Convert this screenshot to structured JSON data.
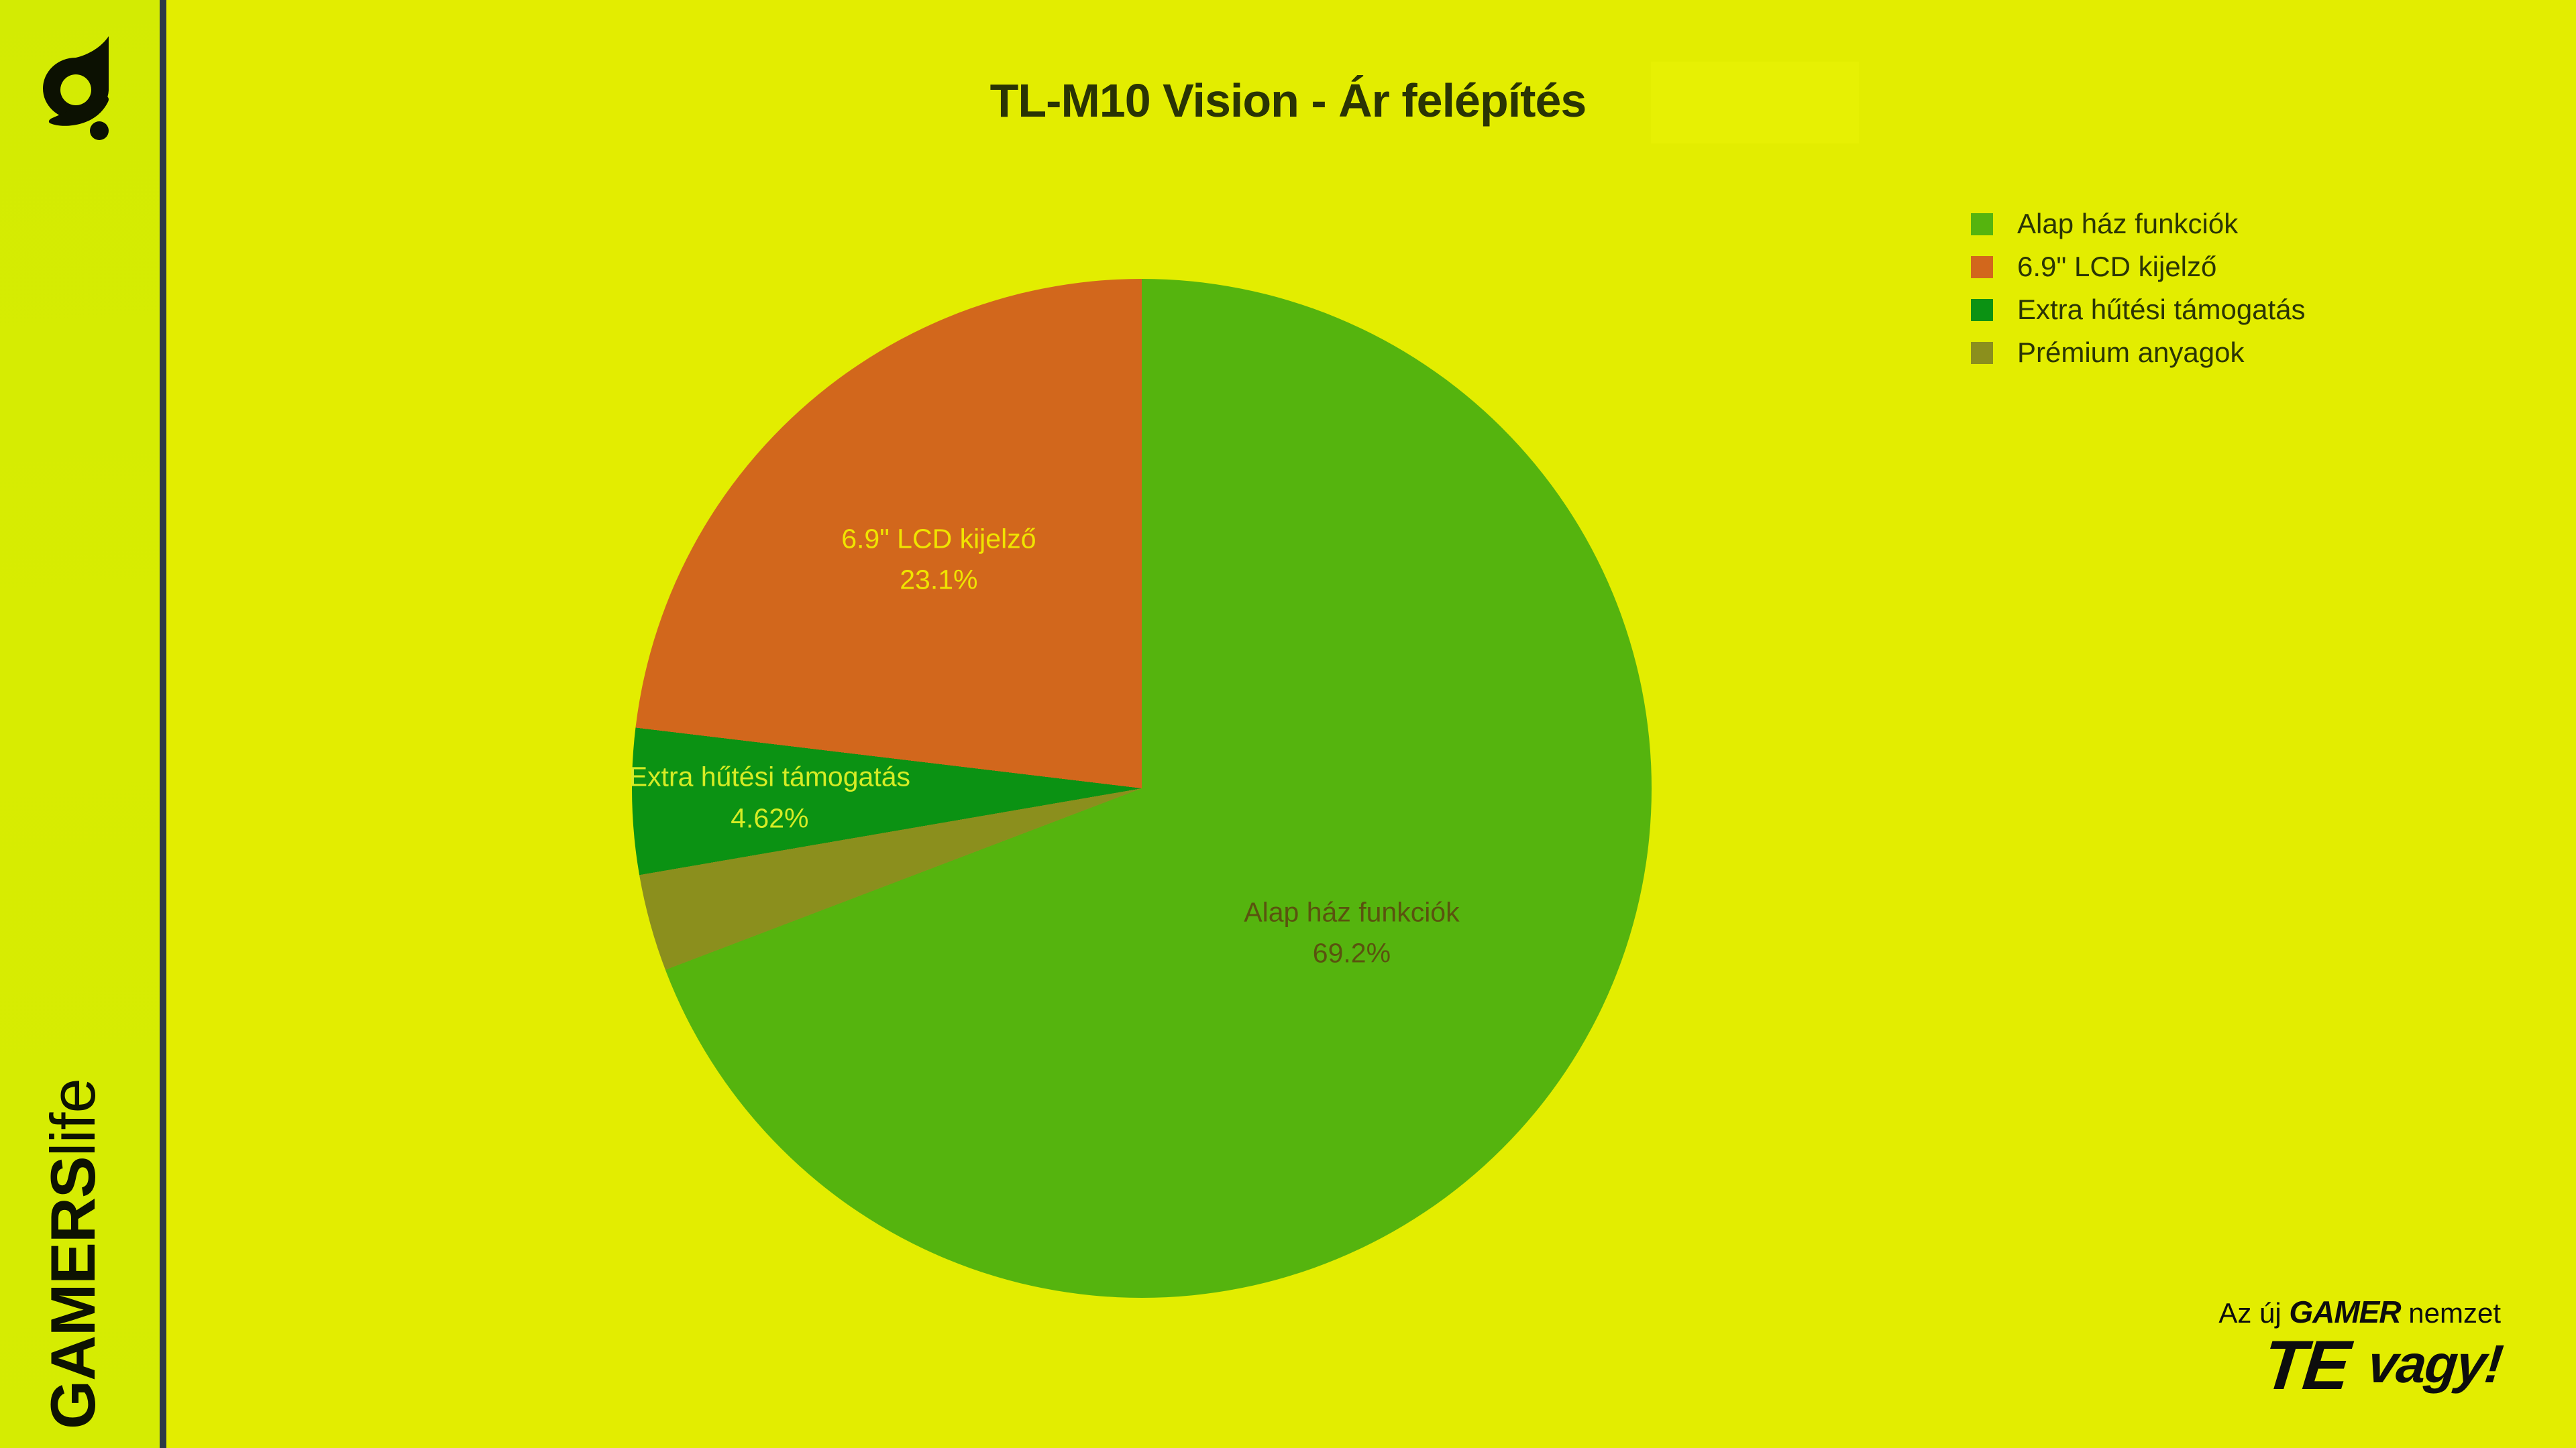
{
  "page": {
    "title": "TL-M10 Vision - Ár felépítés"
  },
  "branding": {
    "sidebar_wordmark_bold": "GAMERS",
    "sidebar_wordmark_light": "life",
    "tagline_prefix": "Az új ",
    "tagline_brand": "GAMER",
    "tagline_suffix": " nemzet",
    "tagline_emph": "TE",
    "tagline_rest": "vagy!"
  },
  "colors": {
    "background": "#e3ed00",
    "left_band": "#d5ec02",
    "divider": "#2c3b47",
    "title_text": "#2a3404",
    "legend_text": "#2b3505",
    "brand_text": "#0d0d0d"
  },
  "legend": {
    "position": "top-right",
    "items": [
      {
        "label": "Alap ház funkciók",
        "color": "#55b40e"
      },
      {
        "label": "6.9\" LCD kijelző",
        "color": "#d2671c"
      },
      {
        "label": "Extra hűtési támogatás",
        "color": "#0b9213"
      },
      {
        "label": "Prémium anyagok",
        "color": "#8b8f1d"
      }
    ]
  },
  "chart_data": {
    "type": "pie",
    "title": "TL-M10 Vision - Ár felépítés",
    "direction": "clockwise",
    "start_angle_deg_from_top": 0,
    "legend_position": "top-right",
    "slices": [
      {
        "label": "Alap ház funkciók",
        "value_pct": 69.2,
        "pct_text": "69.2%",
        "color": "#55b40e",
        "show_label": true,
        "label_color": "#5a530f",
        "label_radius": 0.5
      },
      {
        "label": "Prémium anyagok",
        "value_pct": 3.08,
        "pct_text": "",
        "color": "#8b8f1d",
        "show_label": false,
        "label_color": "",
        "label_radius": 0.6
      },
      {
        "label": "Extra hűtési támogatás",
        "value_pct": 4.62,
        "pct_text": "4.62%",
        "color": "#0b9213",
        "show_label": true,
        "label_color": "#d6ec25",
        "label_radius": 0.73
      },
      {
        "label": "6.9\" LCD kijelző",
        "value_pct": 23.1,
        "pct_text": "23.1%",
        "color": "#d2671c",
        "show_label": true,
        "label_color": "#f0e400",
        "label_radius": 0.6
      }
    ]
  }
}
